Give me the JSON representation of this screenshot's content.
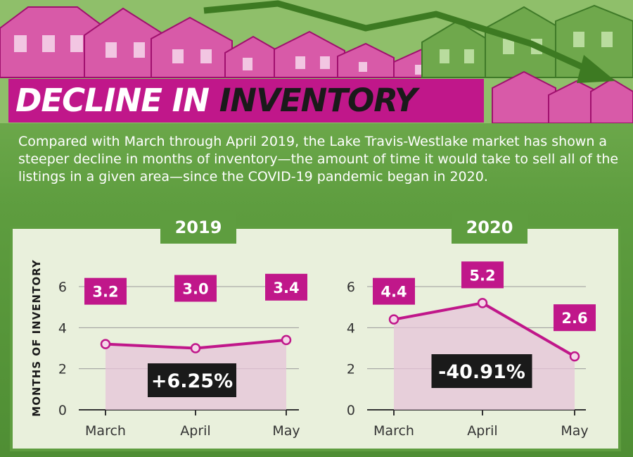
{
  "title": {
    "part1": "DECLINE IN",
    "part2": "INVENTORY"
  },
  "intro": "Compared with March through April 2019, the Lake Travis-Westlake market has shown a steeper decline in months of inventory—the amount of time it would take to sell all of the listings in a given area—since the COVID-19 pandemic began in 2020.",
  "colors": {
    "magenta": "#c0178a",
    "green": "#5e9d3f",
    "dark": "#1a1a1a",
    "fill": "#e6c4d9"
  },
  "chart_data": [
    {
      "type": "line",
      "title": "2019",
      "ylabel": "MONTHS OF INVENTORY",
      "categories": [
        "March",
        "April",
        "May"
      ],
      "values": [
        3.2,
        3.0,
        3.4
      ],
      "value_labels": [
        "3.2",
        "3.0",
        "3.4"
      ],
      "change_label": "+6.25%",
      "ylim": [
        0,
        6
      ],
      "yticks": [
        0,
        2,
        4,
        6
      ],
      "grid": true
    },
    {
      "type": "line",
      "title": "2020",
      "ylabel": "MONTHS OF INVENTORY",
      "categories": [
        "March",
        "April",
        "May"
      ],
      "values": [
        4.4,
        5.2,
        2.6
      ],
      "value_labels": [
        "4.4",
        "5.2",
        "2.6"
      ],
      "change_label": "-40.91%",
      "ylim": [
        0,
        6
      ],
      "yticks": [
        0,
        2,
        4,
        6
      ],
      "grid": true
    }
  ]
}
